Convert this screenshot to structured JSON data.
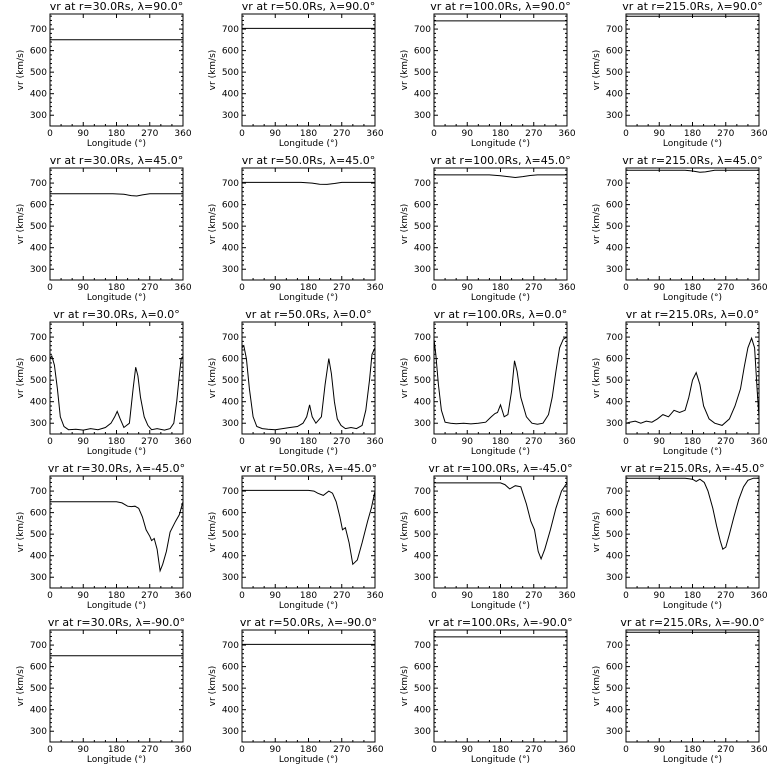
{
  "figure": {
    "xlabel": "Longitude (°)",
    "ylabel": "vr (km/s)"
  },
  "chart_data": [
    {
      "type": "line",
      "title": "vr at r=30.0Rs, λ=90.0°",
      "xlabel": "Longitude (°)",
      "ylabel": "vr (km/s)",
      "xlim": [
        0,
        360
      ],
      "ylim": [
        250,
        770
      ],
      "xticks": [
        0,
        90,
        180,
        270,
        360
      ],
      "yticks": [
        300,
        400,
        500,
        600,
        700
      ],
      "x": [
        0,
        360
      ],
      "y": [
        650,
        650
      ]
    },
    {
      "type": "line",
      "title": "vr at r=50.0Rs, λ=90.0°",
      "xlabel": "Longitude (°)",
      "ylabel": "vr (km/s)",
      "xlim": [
        0,
        360
      ],
      "ylim": [
        250,
        770
      ],
      "xticks": [
        0,
        90,
        180,
        270,
        360
      ],
      "yticks": [
        300,
        400,
        500,
        600,
        700
      ],
      "x": [
        0,
        360
      ],
      "y": [
        703,
        703
      ]
    },
    {
      "type": "line",
      "title": "vr at r=100.0Rs, λ=90.0°",
      "xlabel": "Longitude (°)",
      "ylabel": "vr (km/s)",
      "xlim": [
        0,
        360
      ],
      "ylim": [
        250,
        770
      ],
      "xticks": [
        0,
        90,
        180,
        270,
        360
      ],
      "yticks": [
        300,
        400,
        500,
        600,
        700
      ],
      "x": [
        0,
        360
      ],
      "y": [
        738,
        738
      ]
    },
    {
      "type": "line",
      "title": "vr at r=215.0Rs, λ=90.0°",
      "xlabel": "Longitude (°)",
      "ylabel": "vr (km/s)",
      "xlim": [
        0,
        360
      ],
      "ylim": [
        250,
        770
      ],
      "xticks": [
        0,
        90,
        180,
        270,
        360
      ],
      "yticks": [
        300,
        400,
        500,
        600,
        700
      ],
      "x": [
        0,
        360
      ],
      "y": [
        760,
        760
      ]
    },
    {
      "type": "line",
      "title": "vr at r=30.0Rs, λ=45.0°",
      "xlabel": "Longitude (°)",
      "ylabel": "vr (km/s)",
      "xlim": [
        0,
        360
      ],
      "ylim": [
        250,
        770
      ],
      "xticks": [
        0,
        90,
        180,
        270,
        360
      ],
      "yticks": [
        300,
        400,
        500,
        600,
        700
      ],
      "x": [
        0,
        170,
        200,
        220,
        235,
        250,
        270,
        360
      ],
      "y": [
        650,
        650,
        648,
        642,
        640,
        645,
        650,
        650
      ]
    },
    {
      "type": "line",
      "title": "vr at r=50.0Rs, λ=45.0°",
      "xlabel": "Longitude (°)",
      "ylabel": "vr (km/s)",
      "xlim": [
        0,
        360
      ],
      "ylim": [
        250,
        770
      ],
      "xticks": [
        0,
        90,
        180,
        270,
        360
      ],
      "yticks": [
        300,
        400,
        500,
        600,
        700
      ],
      "x": [
        0,
        160,
        190,
        210,
        230,
        250,
        270,
        360
      ],
      "y": [
        703,
        703,
        700,
        695,
        694,
        698,
        703,
        703
      ]
    },
    {
      "type": "line",
      "title": "vr at r=100.0Rs, λ=45.0°",
      "xlabel": "Longitude (°)",
      "ylabel": "vr (km/s)",
      "xlim": [
        0,
        360
      ],
      "ylim": [
        250,
        770
      ],
      "xticks": [
        0,
        90,
        180,
        270,
        360
      ],
      "yticks": [
        300,
        400,
        500,
        600,
        700
      ],
      "x": [
        0,
        150,
        180,
        200,
        220,
        240,
        260,
        280,
        360
      ],
      "y": [
        738,
        738,
        734,
        730,
        726,
        730,
        735,
        738,
        738
      ]
    },
    {
      "type": "line",
      "title": "vr at r=215.0Rs, λ=45.0°",
      "xlabel": "Longitude (°)",
      "ylabel": "vr (km/s)",
      "xlim": [
        0,
        360
      ],
      "ylim": [
        250,
        770
      ],
      "xticks": [
        0,
        90,
        180,
        270,
        360
      ],
      "yticks": [
        300,
        400,
        500,
        600,
        700
      ],
      "x": [
        0,
        160,
        180,
        200,
        215,
        240,
        360
      ],
      "y": [
        760,
        760,
        756,
        750,
        752,
        760,
        760
      ]
    },
    {
      "type": "line",
      "title": "vr at r=30.0Rs, λ=0.0°",
      "xlabel": "Longitude (°)",
      "ylabel": "vr (km/s)",
      "xlim": [
        0,
        360
      ],
      "ylim": [
        250,
        770
      ],
      "xticks": [
        0,
        90,
        180,
        270,
        360
      ],
      "yticks": [
        300,
        400,
        500,
        600,
        700
      ],
      "x": [
        0,
        5,
        12,
        20,
        28,
        38,
        50,
        70,
        90,
        110,
        130,
        150,
        165,
        175,
        182,
        190,
        200,
        215,
        225,
        232,
        238,
        245,
        255,
        265,
        275,
        290,
        310,
        325,
        335,
        343,
        350,
        355,
        360
      ],
      "y": [
        600,
        612,
        570,
        460,
        330,
        285,
        270,
        272,
        268,
        275,
        270,
        280,
        300,
        330,
        355,
        320,
        280,
        300,
        460,
        560,
        520,
        420,
        330,
        290,
        270,
        275,
        268,
        275,
        300,
        400,
        520,
        600,
        610
      ]
    },
    {
      "type": "line",
      "title": "vr at r=50.0Rs, λ=0.0°",
      "xlabel": "Longitude (°)",
      "ylabel": "vr (km/s)",
      "xlim": [
        0,
        360
      ],
      "ylim": [
        250,
        770
      ],
      "xticks": [
        0,
        90,
        180,
        270,
        360
      ],
      "yticks": [
        300,
        400,
        500,
        600,
        700
      ],
      "x": [
        0,
        5,
        12,
        20,
        30,
        40,
        55,
        70,
        90,
        110,
        130,
        150,
        165,
        175,
        183,
        190,
        200,
        215,
        225,
        235,
        242,
        250,
        258,
        268,
        280,
        295,
        310,
        325,
        335,
        345,
        352,
        360
      ],
      "y": [
        650,
        660,
        600,
        460,
        330,
        285,
        275,
        272,
        270,
        275,
        280,
        285,
        300,
        330,
        385,
        330,
        300,
        330,
        480,
        600,
        530,
        400,
        320,
        290,
        275,
        280,
        275,
        290,
        360,
        500,
        620,
        650
      ]
    },
    {
      "type": "line",
      "title": "vr at r=100.0Rs, λ=0.0°",
      "xlabel": "Longitude (°)",
      "ylabel": "vr (km/s)",
      "xlim": [
        0,
        360
      ],
      "ylim": [
        250,
        770
      ],
      "xticks": [
        0,
        90,
        180,
        270,
        360
      ],
      "yticks": [
        300,
        400,
        500,
        600,
        700
      ],
      "x": [
        0,
        5,
        12,
        20,
        30,
        45,
        60,
        80,
        100,
        120,
        140,
        155,
        165,
        172,
        180,
        190,
        200,
        210,
        218,
        225,
        235,
        250,
        265,
        280,
        295,
        310,
        320,
        330,
        340,
        350,
        360
      ],
      "y": [
        690,
        620,
        480,
        360,
        305,
        300,
        298,
        300,
        297,
        300,
        305,
        330,
        345,
        350,
        385,
        330,
        340,
        450,
        590,
        540,
        420,
        330,
        300,
        295,
        300,
        340,
        420,
        540,
        650,
        690,
        700
      ]
    },
    {
      "type": "line",
      "title": "vr at r=215.0Rs, λ=0.0°",
      "xlabel": "Longitude (°)",
      "ylabel": "vr (km/s)",
      "xlim": [
        0,
        360
      ],
      "ylim": [
        250,
        770
      ],
      "xticks": [
        0,
        90,
        180,
        270,
        360
      ],
      "yticks": [
        300,
        400,
        500,
        600,
        700
      ],
      "x": [
        0,
        10,
        25,
        40,
        55,
        70,
        85,
        100,
        115,
        130,
        145,
        160,
        170,
        180,
        190,
        200,
        210,
        225,
        240,
        260,
        280,
        295,
        310,
        320,
        330,
        340,
        348,
        355,
        360
      ],
      "y": [
        300,
        305,
        310,
        300,
        310,
        305,
        320,
        340,
        330,
        360,
        350,
        360,
        420,
        500,
        535,
        480,
        380,
        320,
        300,
        290,
        320,
        380,
        460,
        560,
        650,
        695,
        650,
        450,
        330
      ]
    },
    {
      "type": "line",
      "title": "vr at r=30.0Rs, λ=-45.0°",
      "xlabel": "Longitude (°)",
      "ylabel": "vr (km/s)",
      "xlim": [
        0,
        360
      ],
      "ylim": [
        250,
        770
      ],
      "xticks": [
        0,
        90,
        180,
        270,
        360
      ],
      "yticks": [
        300,
        400,
        500,
        600,
        700
      ],
      "x": [
        0,
        180,
        195,
        210,
        220,
        230,
        240,
        250,
        260,
        270,
        275,
        282,
        290,
        298,
        305,
        315,
        325,
        340,
        350,
        360
      ],
      "y": [
        650,
        650,
        645,
        630,
        628,
        630,
        620,
        580,
        520,
        490,
        470,
        480,
        430,
        330,
        360,
        420,
        510,
        560,
        590,
        650
      ]
    },
    {
      "type": "line",
      "title": "vr at r=50.0Rs, λ=-45.0°",
      "xlabel": "Longitude (°)",
      "ylabel": "vr (km/s)",
      "xlim": [
        0,
        360
      ],
      "ylim": [
        250,
        770
      ],
      "xticks": [
        0,
        90,
        180,
        270,
        360
      ],
      "yticks": [
        300,
        400,
        500,
        600,
        700
      ],
      "x": [
        0,
        180,
        195,
        205,
        220,
        235,
        245,
        255,
        265,
        272,
        280,
        290,
        300,
        312,
        325,
        340,
        350,
        360
      ],
      "y": [
        703,
        703,
        700,
        690,
        680,
        700,
        690,
        650,
        580,
        520,
        530,
        460,
        360,
        380,
        460,
        560,
        620,
        700
      ]
    },
    {
      "type": "line",
      "title": "vr at r=100.0Rs, λ=-45.0°",
      "xlabel": "Longitude (°)",
      "ylabel": "vr (km/s)",
      "xlim": [
        0,
        360
      ],
      "ylim": [
        250,
        770
      ],
      "xticks": [
        0,
        90,
        180,
        270,
        360
      ],
      "yticks": [
        300,
        400,
        500,
        600,
        700
      ],
      "x": [
        0,
        180,
        192,
        205,
        220,
        235,
        250,
        262,
        272,
        282,
        290,
        300,
        315,
        330,
        345,
        360
      ],
      "y": [
        738,
        738,
        730,
        710,
        725,
        720,
        640,
        560,
        520,
        420,
        385,
        430,
        520,
        620,
        700,
        738
      ]
    },
    {
      "type": "line",
      "title": "vr at r=215.0Rs, λ=-45.0°",
      "xlabel": "Longitude (°)",
      "ylabel": "vr (km/s)",
      "xlim": [
        0,
        360
      ],
      "ylim": [
        250,
        770
      ],
      "xticks": [
        0,
        90,
        180,
        270,
        360
      ],
      "yticks": [
        300,
        400,
        500,
        600,
        700
      ],
      "x": [
        0,
        160,
        180,
        190,
        200,
        212,
        222,
        235,
        245,
        255,
        262,
        270,
        280,
        292,
        305,
        318,
        330,
        345,
        360
      ],
      "y": [
        760,
        760,
        755,
        745,
        755,
        740,
        700,
        620,
        540,
        470,
        430,
        440,
        500,
        580,
        660,
        720,
        750,
        760,
        760
      ]
    },
    {
      "type": "line",
      "title": "vr at r=30.0Rs, λ=-90.0°",
      "xlabel": "Longitude (°)",
      "ylabel": "vr (km/s)",
      "xlim": [
        0,
        360
      ],
      "ylim": [
        250,
        770
      ],
      "xticks": [
        0,
        90,
        180,
        270,
        360
      ],
      "yticks": [
        300,
        400,
        500,
        600,
        700
      ],
      "x": [
        0,
        360
      ],
      "y": [
        650,
        650
      ]
    },
    {
      "type": "line",
      "title": "vr at r=50.0Rs, λ=-90.0°",
      "xlabel": "Longitude (°)",
      "ylabel": "vr (km/s)",
      "xlim": [
        0,
        360
      ],
      "ylim": [
        250,
        770
      ],
      "xticks": [
        0,
        90,
        180,
        270,
        360
      ],
      "yticks": [
        300,
        400,
        500,
        600,
        700
      ],
      "x": [
        0,
        360
      ],
      "y": [
        703,
        703
      ]
    },
    {
      "type": "line",
      "title": "vr at r=100.0Rs, λ=-90.0°",
      "xlabel": "Longitude (°)",
      "ylabel": "vr (km/s)",
      "xlim": [
        0,
        360
      ],
      "ylim": [
        250,
        770
      ],
      "xticks": [
        0,
        90,
        180,
        270,
        360
      ],
      "yticks": [
        300,
        400,
        500,
        600,
        700
      ],
      "x": [
        0,
        360
      ],
      "y": [
        738,
        738
      ]
    },
    {
      "type": "line",
      "title": "vr at r=215.0Rs, λ=-90.0°",
      "xlabel": "Longitude (°)",
      "ylabel": "vr (km/s)",
      "xlim": [
        0,
        360
      ],
      "ylim": [
        250,
        770
      ],
      "xticks": [
        0,
        90,
        180,
        270,
        360
      ],
      "yticks": [
        300,
        400,
        500,
        600,
        700
      ],
      "x": [
        0,
        360
      ],
      "y": [
        760,
        760
      ]
    }
  ]
}
